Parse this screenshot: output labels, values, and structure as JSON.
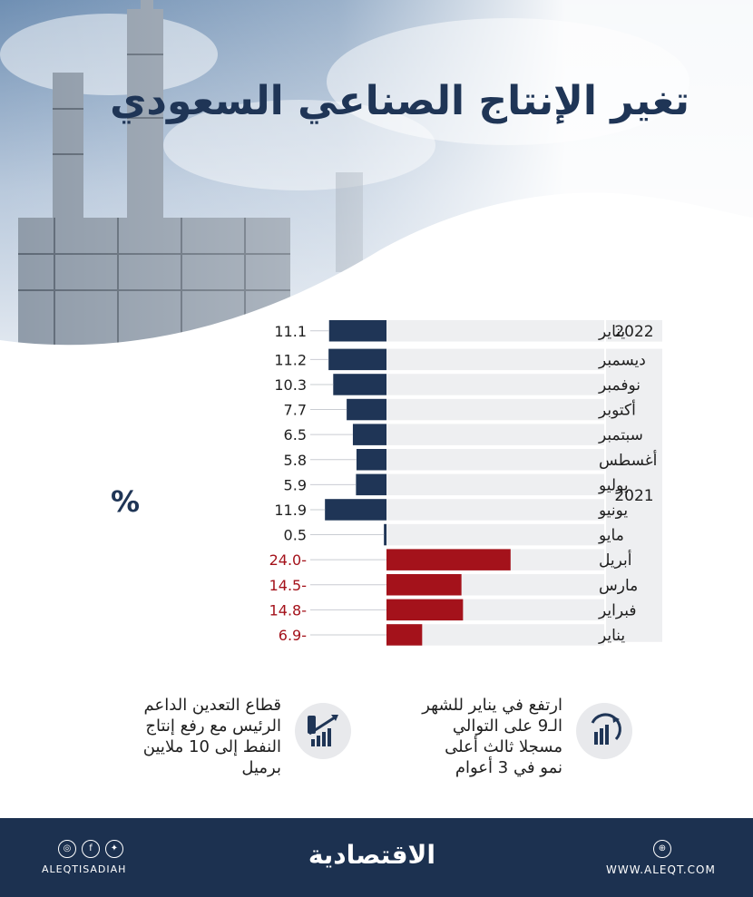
{
  "title": "تغير الإنتاج الصناعي السعودي",
  "unit_label": "%",
  "chart_data": {
    "type": "bar",
    "orientation": "horizontal",
    "groups": [
      {
        "label": "2022",
        "months": [
          "يناير"
        ]
      },
      {
        "label": "2021",
        "months": [
          "ديسمبر",
          "نوفمبر",
          "أكتوبر",
          "سبتمبر",
          "أغسطس",
          "يوليو",
          "يونيو",
          "مايو",
          "أبريل",
          "مارس",
          "فبراير",
          "يناير"
        ]
      }
    ],
    "categories": [
      "يناير",
      "ديسمبر",
      "نوفمبر",
      "أكتوبر",
      "سبتمبر",
      "أغسطس",
      "يوليو",
      "يونيو",
      "مايو",
      "أبريل",
      "مارس",
      "فبراير",
      "يناير"
    ],
    "values": [
      11.1,
      11.2,
      10.3,
      7.7,
      6.5,
      5.8,
      5.9,
      11.9,
      0.5,
      -24.0,
      -14.5,
      -14.8,
      -6.9
    ],
    "value_labels": [
      "11.1",
      "11.2",
      "10.3",
      "7.7",
      "6.5",
      "5.8",
      "5.9",
      "11.9",
      "0.5",
      "24.0-",
      "14.5-",
      "14.8-",
      "6.9-"
    ],
    "colors": {
      "positive": "#1f3556",
      "negative": "#a4121b",
      "row_bg": "#eeeff1"
    }
  },
  "notes": {
    "right": "ارتفع في يناير للشهر الـ9 على التوالي مسجلا ثالث أعلى نمو في 3 أعوام",
    "left": "قطاع التعدين الداعم الرئيس مع رفع إنتاج النفط إلى 10 ملايين برميل"
  },
  "footer": {
    "brand": "الاقتصادية",
    "handle": "ALEQTISADIAH",
    "url": "WWW.ALEQT.COM",
    "social_icons": [
      "instagram-icon",
      "facebook-icon",
      "twitter-icon"
    ],
    "url_icon": "globe-icon"
  }
}
